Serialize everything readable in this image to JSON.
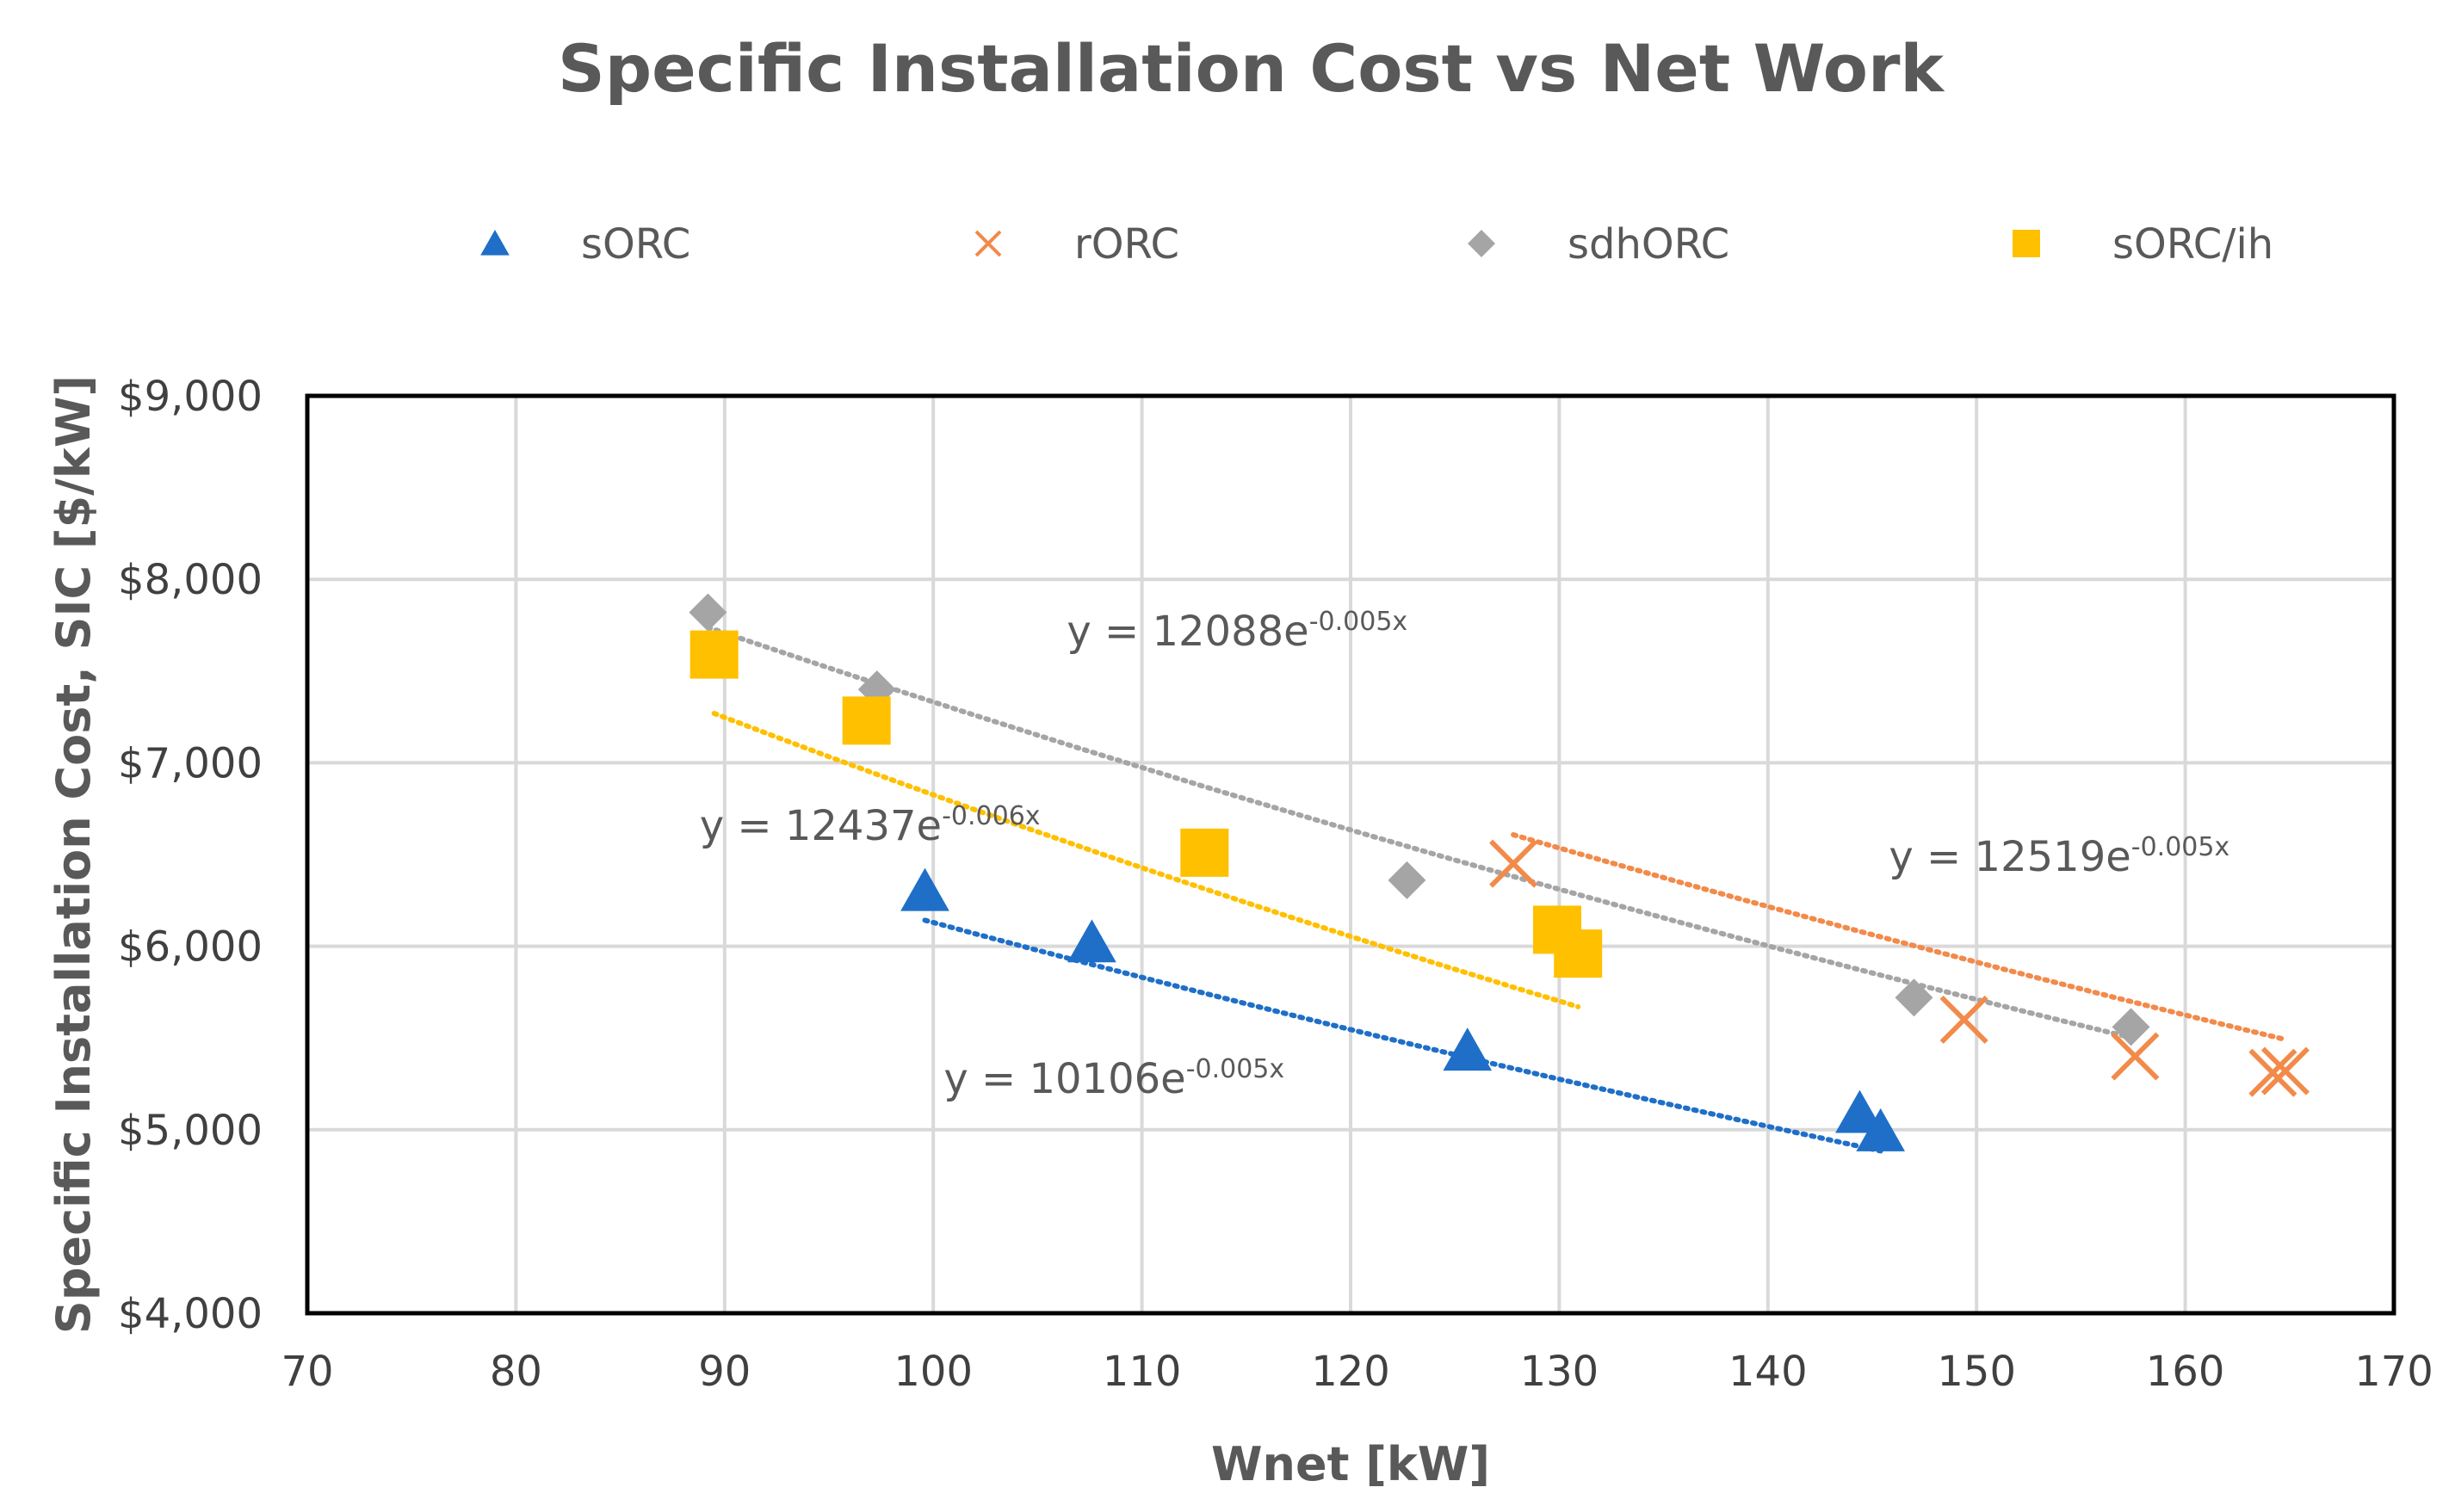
{
  "chart_data": {
    "type": "scatter",
    "title": "Specific Installation Cost vs Net Work",
    "xlabel": "Wnet [kW]",
    "ylabel": "Specific Installation Cost, SIC [$/kW]",
    "xlim": [
      70,
      170
    ],
    "ylim": [
      4000,
      9000
    ],
    "x_ticks": [
      70,
      80,
      90,
      100,
      110,
      120,
      130,
      140,
      150,
      160,
      170
    ],
    "y_ticks": [
      4000,
      5000,
      6000,
      7000,
      8000,
      9000
    ],
    "x_tick_labels": [
      "70",
      "80",
      "90",
      "100",
      "110",
      "120",
      "130",
      "140",
      "150",
      "160",
      "170"
    ],
    "y_tick_labels": [
      "$4,000",
      "$5,000",
      "$6,000",
      "$7,000",
      "$8,000",
      "$9,000"
    ],
    "grid": true,
    "legend_position": "top",
    "series": [
      {
        "name": "sORC",
        "marker": "triangle",
        "color": "#1F6FC8",
        "points": [
          [
            99.6,
            6300
          ],
          [
            107.6,
            6020
          ],
          [
            125.6,
            5430
          ],
          [
            144.4,
            5090
          ],
          [
            145.4,
            4990
          ]
        ],
        "trendline": {
          "label": "y = 10106e",
          "exponent": "-0.005x",
          "a": 10106,
          "b": -0.005,
          "x_range": [
            99.6,
            145.4
          ],
          "label_anchor": [
            100.5,
            5200
          ]
        }
      },
      {
        "name": "rORC",
        "marker": "x",
        "color": "#F28A4A",
        "points": [
          [
            127.8,
            6450
          ],
          [
            149.4,
            5600
          ],
          [
            157.6,
            5400
          ],
          [
            164.2,
            5310
          ],
          [
            164.8,
            5320
          ]
        ],
        "trendline": {
          "label": "y = 12519e",
          "exponent": "-0.005x",
          "a": 12519,
          "b": -0.005,
          "x_range": [
            127.8,
            164.8
          ],
          "label_anchor": [
            145.8,
            6410
          ]
        }
      },
      {
        "name": "sdhORC",
        "marker": "diamond",
        "color": "#A5A5A5",
        "points": [
          [
            89.2,
            7820
          ],
          [
            97.3,
            7400
          ],
          [
            122.7,
            6360
          ],
          [
            147.0,
            5720
          ],
          [
            157.4,
            5560
          ]
        ],
        "trendline": {
          "label": "y = 12088e",
          "exponent": "-0.005x",
          "a": 12088,
          "b": -0.005,
          "x_range": [
            89.2,
            157.4
          ],
          "label_anchor": [
            106.4,
            7640
          ]
        }
      },
      {
        "name": "sORC/ih",
        "marker": "square",
        "color": "#FFC000",
        "points": [
          [
            89.5,
            7590
          ],
          [
            96.8,
            7230
          ],
          [
            113.0,
            6510
          ],
          [
            129.9,
            6090
          ],
          [
            130.9,
            5960
          ]
        ],
        "trendline": {
          "label": "y = 12437e",
          "exponent": "-0.006x",
          "a": 12437,
          "b": -0.006,
          "x_range": [
            89.5,
            130.9
          ],
          "label_anchor": [
            88.8,
            6580
          ]
        }
      }
    ]
  }
}
